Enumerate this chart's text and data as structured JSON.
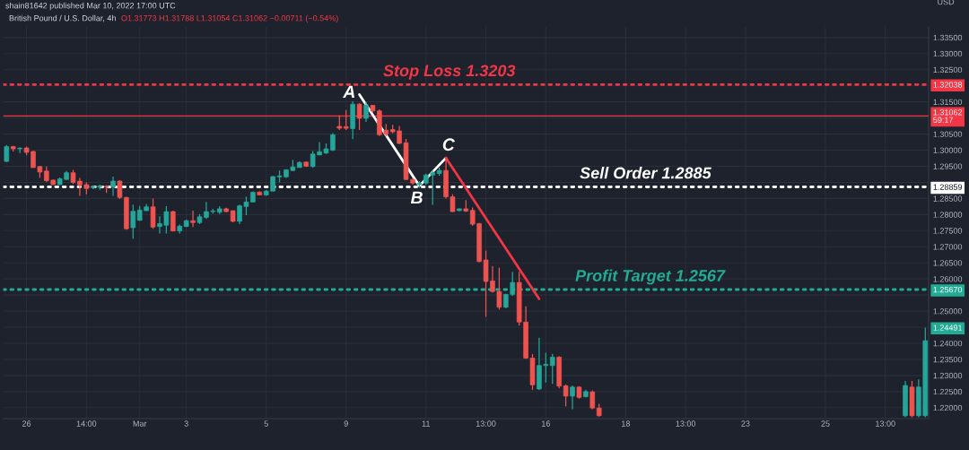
{
  "chart_data": {
    "type": "candlestick",
    "title": "British Pound / U.S. Dollar, 4h",
    "subtitle": "O1.31773 H1.31788 L1.31054 C1.31062 −0.00711 (−0.54%)",
    "y2label": "USD",
    "categories": [
      null,
      null,
      null,
      "26",
      null,
      null,
      null,
      null,
      null,
      null,
      null,
      null,
      "14:00",
      null,
      null,
      null,
      null,
      null,
      null,
      null,
      "Mar",
      null,
      null,
      null,
      null,
      null,
      null,
      "3",
      null,
      null,
      null,
      null,
      null,
      null,
      null,
      null,
      null,
      null,
      null,
      "5",
      null,
      null,
      null,
      null,
      null,
      null,
      null,
      null,
      null,
      null,
      null,
      "9",
      null,
      null,
      null,
      null,
      null,
      null,
      null,
      null,
      null,
      null,
      null,
      "11",
      null,
      null,
      null,
      null,
      null,
      null,
      null,
      null,
      "13:00",
      null,
      null,
      null,
      null,
      null,
      null,
      null,
      null,
      "16",
      null,
      null,
      null,
      null,
      null,
      null,
      null,
      null,
      null,
      null,
      null,
      "18",
      null,
      null,
      null,
      null,
      null,
      null,
      null,
      null,
      "13:00",
      null,
      null,
      null,
      null,
      null,
      null,
      null,
      null,
      "23",
      null,
      null,
      null,
      null,
      null,
      null,
      null,
      null,
      null,
      null,
      null,
      "25",
      null,
      null,
      null,
      null,
      null,
      null,
      null,
      null,
      "13:00",
      null,
      null,
      null,
      null,
      null,
      null
    ],
    "ohlc": [
      [
        1.2965,
        1.3016,
        1.2963,
        1.3011
      ],
      [
        1.3011,
        1.3013,
        1.2996,
        1.3004
      ],
      [
        1.3004,
        1.3009,
        1.2991,
        1.3006
      ],
      [
        1.3007,
        1.3011,
        1.2984,
        1.2993
      ],
      [
        1.2996,
        1.2998,
        1.2945,
        1.2946
      ],
      [
        1.2949,
        1.2951,
        1.2914,
        1.2932
      ],
      [
        1.2935,
        1.2949,
        1.2902,
        1.2905
      ],
      [
        1.2907,
        1.2909,
        1.2892,
        1.2893
      ],
      [
        1.2893,
        1.2915,
        1.2892,
        1.2911
      ],
      [
        1.2909,
        1.2935,
        1.2909,
        1.293
      ],
      [
        1.293,
        1.2939,
        1.2895,
        1.29
      ],
      [
        1.2904,
        1.2914,
        1.2858,
        1.2892
      ],
      [
        1.2893,
        1.29,
        1.2863,
        1.2881
      ],
      [
        1.2884,
        1.289,
        1.2879,
        1.2887
      ],
      [
        1.2885,
        1.2893,
        1.2877,
        1.2888
      ],
      [
        1.2888,
        1.2891,
        1.2867,
        1.2885
      ],
      [
        1.2886,
        1.2918,
        1.2858,
        1.2904
      ],
      [
        1.2904,
        1.2907,
        1.2848,
        1.2853
      ],
      [
        1.2853,
        1.2855,
        1.2753,
        1.2756
      ],
      [
        1.2759,
        1.2831,
        1.2725,
        1.281
      ],
      [
        1.2782,
        1.2827,
        1.2781,
        1.2814
      ],
      [
        1.2812,
        1.2833,
        1.2811,
        1.2824
      ],
      [
        1.2824,
        1.285,
        1.2756,
        1.2761
      ],
      [
        1.2763,
        1.2795,
        1.2741,
        1.2772
      ],
      [
        1.2767,
        1.2826,
        1.2741,
        1.2809
      ],
      [
        1.2809,
        1.2812,
        1.2747,
        1.2749
      ],
      [
        1.2749,
        1.2769,
        1.2741,
        1.2764
      ],
      [
        1.2763,
        1.2784,
        1.2761,
        1.2781
      ],
      [
        1.2781,
        1.2812,
        1.2761,
        1.2775
      ],
      [
        1.2775,
        1.2801,
        1.277,
        1.2793
      ],
      [
        1.2791,
        1.2839,
        1.2786,
        1.2809
      ],
      [
        1.2809,
        1.2817,
        1.2803,
        1.2811
      ],
      [
        1.2807,
        1.2826,
        1.2802,
        1.2818
      ],
      [
        1.2818,
        1.2821,
        1.2807,
        1.2809
      ],
      [
        1.2812,
        1.2813,
        1.2776,
        1.2779
      ],
      [
        1.2779,
        1.2831,
        1.277,
        1.2827
      ],
      [
        1.2825,
        1.2855,
        1.2798,
        1.2839
      ],
      [
        1.2839,
        1.2872,
        1.2837,
        1.2869
      ],
      [
        1.287,
        1.2872,
        1.286,
        1.2861
      ],
      [
        1.2861,
        1.2876,
        1.2858,
        1.2873
      ],
      [
        1.2873,
        1.292,
        1.2872,
        1.2918
      ],
      [
        1.2917,
        1.2937,
        1.29,
        1.292
      ],
      [
        1.2917,
        1.2941,
        1.2914,
        1.2939
      ],
      [
        1.2937,
        1.297,
        1.2935,
        1.2948
      ],
      [
        1.2946,
        1.2965,
        1.2946,
        1.2962
      ],
      [
        1.2963,
        1.2964,
        1.2948,
        1.295
      ],
      [
        1.2949,
        1.2997,
        1.2946,
        1.2988
      ],
      [
        1.2985,
        1.3025,
        1.2985,
        1.2995
      ],
      [
        1.2991,
        1.3021,
        1.2988,
        1.3004
      ],
      [
        1.3,
        1.3053,
        1.2997,
        1.3048
      ],
      [
        1.3074,
        1.3108,
        1.3063,
        1.3068
      ],
      [
        1.3073,
        1.3125,
        1.3063,
        1.3068
      ],
      [
        1.3067,
        1.3152,
        1.3035,
        1.3143
      ],
      [
        1.3143,
        1.3146,
        1.3063,
        1.3099
      ],
      [
        1.3099,
        1.315,
        1.3088,
        1.3139
      ],
      [
        1.3139,
        1.3141,
        1.3116,
        1.3122
      ],
      [
        1.3122,
        1.3127,
        1.3044,
        1.3048
      ],
      [
        1.3062,
        1.3081,
        1.3043,
        1.305
      ],
      [
        1.3064,
        1.3079,
        1.3052,
        1.3057
      ],
      [
        1.306,
        1.3075,
        1.3019,
        1.3021
      ],
      [
        1.3023,
        1.3035,
        1.2907,
        1.2909
      ],
      [
        1.2909,
        1.2913,
        1.2893,
        1.2898
      ],
      [
        1.2893,
        1.2904,
        1.2883,
        1.2897
      ],
      [
        1.2898,
        1.2927,
        1.2893,
        1.2923
      ],
      [
        1.2923,
        1.2937,
        1.283,
        1.293
      ],
      [
        1.2928,
        1.2946,
        1.2921,
        1.2937
      ],
      [
        1.2937,
        1.297,
        1.285,
        1.2855
      ],
      [
        1.2855,
        1.2863,
        1.2808,
        1.2809
      ],
      [
        1.2812,
        1.2819,
        1.281,
        1.2818
      ],
      [
        1.2818,
        1.2845,
        1.2808,
        1.2811
      ],
      [
        1.2813,
        1.2822,
        1.2765,
        1.277
      ],
      [
        1.2772,
        1.2774,
        1.2651,
        1.2654
      ],
      [
        1.2659,
        1.2688,
        1.2482,
        1.2592
      ],
      [
        1.2594,
        1.264,
        1.2557,
        1.2561
      ],
      [
        1.2561,
        1.2635,
        1.2505,
        1.2512
      ],
      [
        1.2512,
        1.2554,
        1.2509,
        1.2552
      ],
      [
        1.2552,
        1.2622,
        1.2547,
        1.2589
      ],
      [
        1.2589,
        1.2622,
        1.2455,
        1.2466
      ],
      [
        1.2466,
        1.2515,
        1.2352,
        1.2354
      ],
      [
        1.2354,
        1.2367,
        1.2255,
        1.2271
      ],
      [
        1.2258,
        1.2417,
        1.2255,
        1.2331
      ],
      [
        1.2331,
        1.2371,
        1.2278,
        1.2335
      ],
      [
        1.2331,
        1.2367,
        1.2274,
        1.2357
      ],
      [
        1.2357,
        1.236,
        1.226,
        1.2267
      ],
      [
        1.2268,
        1.2272,
        1.2204,
        1.2236
      ],
      [
        1.2236,
        1.2269,
        1.2195,
        1.2264
      ],
      [
        1.2264,
        1.2267,
        1.2228,
        1.2232
      ],
      [
        1.2234,
        1.2256,
        1.2232,
        1.225
      ],
      [
        1.2249,
        1.2254,
        1.2195,
        1.2199
      ],
      [
        1.2199,
        1.2212,
        1.2172,
        1.2175
      ],
      null,
      null,
      null,
      null,
      null,
      null,
      null,
      null,
      null,
      null,
      null,
      null,
      null,
      null,
      null,
      null,
      null,
      null,
      null,
      null,
      null,
      null,
      null,
      null,
      null,
      null,
      null,
      null,
      null,
      null,
      null,
      null,
      null,
      null,
      null,
      null,
      null,
      null,
      null,
      null,
      null,
      null,
      null,
      null,
      null,
      [
        1.2175,
        1.2283,
        1.217,
        1.2269
      ],
      [
        1.2264,
        1.2283,
        1.217,
        1.2175
      ],
      [
        1.2175,
        1.2288,
        1.217,
        1.2264
      ],
      [
        1.2175,
        1.2449,
        1.217,
        1.2408
      ]
    ],
    "colors": [
      "#26a69a",
      "#ef5350",
      "#26a69a",
      "#ef5350",
      "#ef5350",
      "#ef5350",
      "#ef5350",
      "#ef5350",
      "#26a69a",
      "#26a69a",
      "#ef5350",
      "#ef5350",
      "#ef5350",
      "#26a69a",
      "#26a69a",
      "#ef5350",
      "#26a69a",
      "#ef5350",
      "#ef5350",
      "#26a69a",
      "#26a69a",
      "#26a69a",
      "#ef5350",
      "#26a69a",
      "#26a69a",
      "#ef5350",
      "#26a69a",
      "#26a69a",
      "#ef5350",
      "#26a69a",
      "#26a69a",
      "#26a69a",
      "#26a69a",
      "#ef5350",
      "#ef5350",
      "#26a69a",
      "#26a69a",
      "#26a69a",
      "#ef5350",
      "#26a69a",
      "#26a69a",
      "#26a69a",
      "#26a69a",
      "#26a69a",
      "#26a69a",
      "#ef5350",
      "#26a69a",
      "#26a69a",
      "#26a69a",
      "#26a69a",
      "#ef5350",
      "#ef5350",
      "#26a69a",
      "#ef5350",
      "#26a69a",
      "#ef5350",
      "#ef5350",
      "#ef5350",
      "#ef5350",
      "#ef5350",
      "#ef5350",
      "#ef5350",
      "#26a69a",
      "#26a69a",
      "#26a69a",
      "#26a69a",
      "#ef5350",
      "#ef5350",
      "#26a69a",
      "#ef5350",
      "#ef5350",
      "#ef5350",
      "#ef5350",
      "#ef5350",
      "#ef5350",
      "#26a69a",
      "#26a69a",
      "#ef5350",
      "#ef5350",
      "#ef5350",
      "#26a69a",
      "#26a69a",
      "#26a69a",
      "#ef5350",
      "#ef5350",
      "#26a69a",
      "#ef5350",
      "#26a69a",
      "#ef5350",
      "#ef5350",
      null,
      null,
      null,
      null,
      null,
      null,
      null,
      null,
      null,
      null,
      null,
      null,
      null,
      null,
      null,
      null,
      null,
      null,
      null,
      null,
      null,
      null,
      null,
      null,
      null,
      null,
      null,
      null,
      null,
      null,
      null,
      null,
      null,
      null,
      null,
      null,
      null,
      null,
      null,
      null,
      null,
      null,
      null,
      null,
      null,
      "#26a69a",
      "#ef5350",
      "#26a69a",
      "#26a69a"
    ],
    "series": [
      {
        "type": "line",
        "color": "#ffffff",
        "values": [
          null,
          null,
          null,
          null,
          null,
          null,
          null,
          null,
          null,
          null,
          null,
          null,
          null,
          null,
          null,
          null,
          null,
          null,
          null,
          null,
          null,
          null,
          null,
          null,
          null,
          null,
          null,
          null,
          null,
          null,
          null,
          null,
          null,
          null,
          null,
          null,
          null,
          null,
          null,
          null,
          null,
          null,
          null,
          null,
          null,
          null,
          null,
          null,
          null,
          null,
          null,
          null,
          null,
          1.3173,
          null,
          null,
          null,
          null,
          null,
          null,
          null,
          null,
          1.2889,
          null,
          null,
          null,
          1.2976,
          null,
          null,
          null,
          null,
          null,
          null,
          null,
          null,
          null,
          null,
          null,
          null,
          null,
          null,
          null,
          null,
          null,
          null,
          null,
          null,
          null,
          null,
          null,
          null,
          null,
          null,
          null,
          null,
          null,
          null,
          null,
          null,
          null,
          null,
          null,
          null,
          null,
          null,
          null,
          null,
          null,
          null,
          null,
          null,
          null,
          null,
          null,
          null,
          null,
          null,
          null,
          null,
          null,
          null,
          null,
          null,
          null,
          null,
          null,
          null,
          null,
          null,
          null,
          null,
          null,
          null,
          null,
          null,
          null,
          null,
          null,
          null
        ],
        "value_labels": [
          null,
          null,
          null,
          null,
          null,
          null,
          null,
          null,
          null,
          null,
          null,
          null,
          null,
          null,
          null,
          null,
          null,
          null,
          null,
          null,
          null,
          null,
          null,
          null,
          null,
          null,
          null,
          null,
          null,
          null,
          null,
          null,
          null,
          null,
          null,
          null,
          null,
          null,
          null,
          null,
          null,
          null,
          null,
          null,
          null,
          null,
          null,
          null,
          null,
          null,
          null,
          null,
          null,
          "A",
          null,
          null,
          null,
          null,
          null,
          null,
          null,
          null,
          "B",
          null,
          null,
          null,
          "C",
          null,
          null,
          null,
          null,
          null,
          null,
          null,
          null,
          null,
          null,
          null,
          null,
          null,
          null,
          null,
          null,
          null,
          null,
          null,
          null,
          null,
          null,
          null,
          null,
          null,
          null,
          null,
          null,
          null,
          null,
          null,
          null,
          null,
          null,
          null,
          null,
          null,
          null,
          null,
          null,
          null,
          null,
          null,
          null,
          null,
          null,
          null,
          null,
          null,
          null,
          null,
          null,
          null,
          null,
          null,
          null,
          null,
          null,
          null,
          null,
          null,
          null,
          null,
          null,
          null,
          null,
          null,
          null,
          null,
          null,
          null,
          null
        ]
      },
      {
        "type": "line",
        "color": "#f23645",
        "values": [
          null,
          null,
          null,
          null,
          null,
          null,
          null,
          null,
          null,
          null,
          null,
          null,
          null,
          null,
          null,
          null,
          null,
          null,
          null,
          null,
          null,
          null,
          null,
          null,
          null,
          null,
          null,
          null,
          null,
          null,
          null,
          null,
          null,
          null,
          null,
          null,
          null,
          null,
          null,
          null,
          null,
          null,
          null,
          null,
          null,
          null,
          null,
          null,
          null,
          null,
          null,
          null,
          null,
          null,
          null,
          null,
          null,
          null,
          null,
          null,
          null,
          null,
          null,
          null,
          null,
          null,
          1.2976,
          null,
          null,
          null,
          null,
          null,
          null,
          null,
          null,
          null,
          null,
          null,
          null,
          null,
          1.2538,
          null,
          null,
          null,
          null,
          null,
          null,
          null,
          null,
          null,
          null,
          null,
          null,
          null,
          null,
          null,
          null,
          null,
          null,
          null,
          null,
          null,
          null,
          null,
          null,
          null,
          null,
          null,
          null,
          null,
          null,
          null,
          null,
          null,
          null,
          null,
          null,
          null,
          null,
          null,
          null,
          null,
          null,
          null,
          null,
          null,
          null,
          null,
          null,
          null,
          null,
          null,
          null,
          null,
          null,
          null,
          null,
          null,
          null
        ]
      }
    ],
    "ylim": [
      1.2166,
      1.3383
    ],
    "yticks": [
      {
        "value": 1.22,
        "label": "1.22000"
      },
      {
        "value": 1.225,
        "label": "1.22500"
      },
      {
        "value": 1.23,
        "label": "1.23000"
      },
      {
        "value": 1.235,
        "label": "1.23500"
      },
      {
        "value": 1.24,
        "label": "1.24000"
      },
      {
        "value": 1.245,
        "label": null
      },
      {
        "value": 1.25,
        "label": "1.25000"
      },
      {
        "value": 1.255,
        "label": null
      },
      {
        "value": 1.26,
        "label": "1.26000"
      },
      {
        "value": 1.265,
        "label": "1.26500"
      },
      {
        "value": 1.27,
        "label": "1.27000"
      },
      {
        "value": 1.275,
        "label": "1.27500"
      },
      {
        "value": 1.28,
        "label": "1.28000"
      },
      {
        "value": 1.285,
        "label": "1.28500"
      },
      {
        "value": 1.29,
        "label": null
      },
      {
        "value": 1.295,
        "label": "1.29500"
      },
      {
        "value": 1.3,
        "label": "1.30000"
      },
      {
        "value": 1.305,
        "label": "1.30500"
      },
      {
        "value": 1.31,
        "label": null
      },
      {
        "value": 1.315,
        "label": "1.31500"
      },
      {
        "value": 1.32,
        "label": null
      },
      {
        "value": 1.325,
        "label": "1.32500"
      },
      {
        "value": 1.33,
        "label": "1.33000"
      },
      {
        "value": 1.335,
        "label": "1.33500"
      }
    ],
    "y2lim": [
      1.2166,
      1.3383
    ],
    "y2ticks": [
      {
        "value": 1.32038,
        "label": "1.32038"
      },
      {
        "value": 1.31062,
        "label": "1.31062\n59:17"
      },
      {
        "value": 1.28859,
        "label": "1.28859"
      },
      {
        "value": 1.2567,
        "label": "1.25670"
      },
      {
        "value": 1.24491,
        "label": "1.24491"
      }
    ],
    "ref_lines": [
      {
        "axis": "y",
        "value": 1.32038,
        "label": "Stop Loss 1.3203",
        "color": "#f23645",
        "line_style": "dotted"
      },
      {
        "axis": "y",
        "value": 1.31062,
        "label": null,
        "color": "#f23645",
        "line_style": "solid"
      },
      {
        "axis": "y",
        "value": 1.28859,
        "label": "Sell Order 1.2885",
        "color": "#ffffff",
        "line_style": "dotted"
      },
      {
        "axis": "y",
        "value": 1.2567,
        "label": "Profit Target 1.2567",
        "color": "#22ab94",
        "line_style": "dotted"
      }
    ],
    "annotations": [
      "shain81642 published Mar 10, 2022 17:00 UTC"
    ],
    "grid": true
  }
}
